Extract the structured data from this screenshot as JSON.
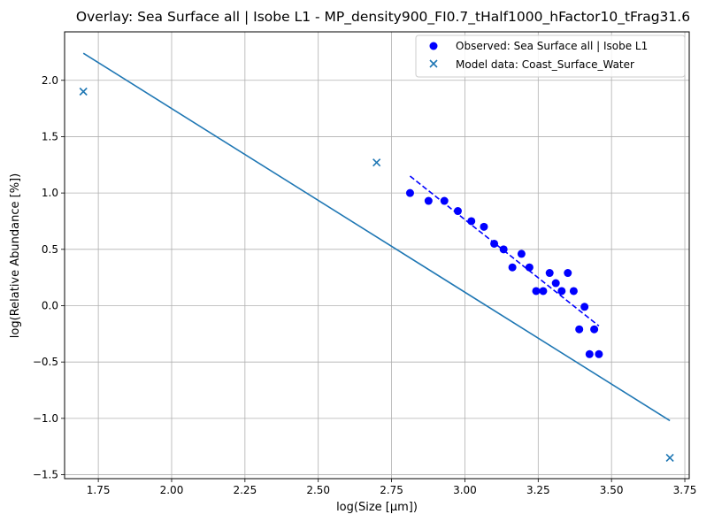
{
  "chart_data": {
    "type": "scatter",
    "title": "Overlay: Sea Surface all | Isobe L1 - MP_density900_FI0.7_tHalf1000_hFactor10_tFrag31.6",
    "xlabel": "log(Size [µm])",
    "ylabel": "log(Relative Abundance [%])",
    "xlim": [
      1.635,
      3.765
    ],
    "ylim": [
      -1.535,
      2.43
    ],
    "xticks": [
      1.75,
      2.0,
      2.25,
      2.5,
      2.75,
      3.0,
      3.25,
      3.5,
      3.75
    ],
    "xtick_labels": [
      "1.75",
      "2.00",
      "2.25",
      "2.50",
      "2.75",
      "3.00",
      "3.25",
      "3.50",
      "3.75"
    ],
    "yticks": [
      -1.5,
      -1.0,
      -0.5,
      0.0,
      0.5,
      1.0,
      1.5,
      2.0
    ],
    "ytick_labels": [
      "−1.5",
      "−1.0",
      "−0.5",
      "0.0",
      "0.5",
      "1.0",
      "1.5",
      "2.0"
    ],
    "grid": true,
    "legend_position": "top-right",
    "series": [
      {
        "name": "Observed: Sea Surface all | Isobe L1",
        "kind": "scatter",
        "marker": "circle",
        "color": "#0000ff",
        "x": [
          2.813,
          2.876,
          2.93,
          2.976,
          3.022,
          3.065,
          3.1,
          3.132,
          3.162,
          3.193,
          3.22,
          3.243,
          3.267,
          3.289,
          3.31,
          3.33,
          3.351,
          3.371,
          3.39,
          3.408,
          3.425,
          3.441,
          3.457
        ],
        "y": [
          1.0,
          0.93,
          0.93,
          0.84,
          0.75,
          0.7,
          0.55,
          0.5,
          0.34,
          0.46,
          0.34,
          0.13,
          0.13,
          0.29,
          0.2,
          0.13,
          0.29,
          0.13,
          -0.21,
          -0.01,
          -0.43,
          -0.21,
          -0.43
        ]
      },
      {
        "name": "Model data: Coast_Surface_Water",
        "kind": "scatter",
        "marker": "x",
        "color": "#1f77b4",
        "x": [
          1.699,
          2.699,
          3.699
        ],
        "y": [
          1.9,
          1.27,
          -1.35
        ]
      }
    ],
    "lines": [
      {
        "kind": "line",
        "color": "#1f77b4",
        "style": "solid",
        "x": [
          1.699,
          3.699
        ],
        "y": [
          2.24,
          -1.02
        ]
      },
      {
        "kind": "line",
        "color": "#0000ff",
        "style": "dashed",
        "x": [
          2.813,
          3.457
        ],
        "y": [
          1.15,
          -0.18
        ]
      }
    ]
  }
}
